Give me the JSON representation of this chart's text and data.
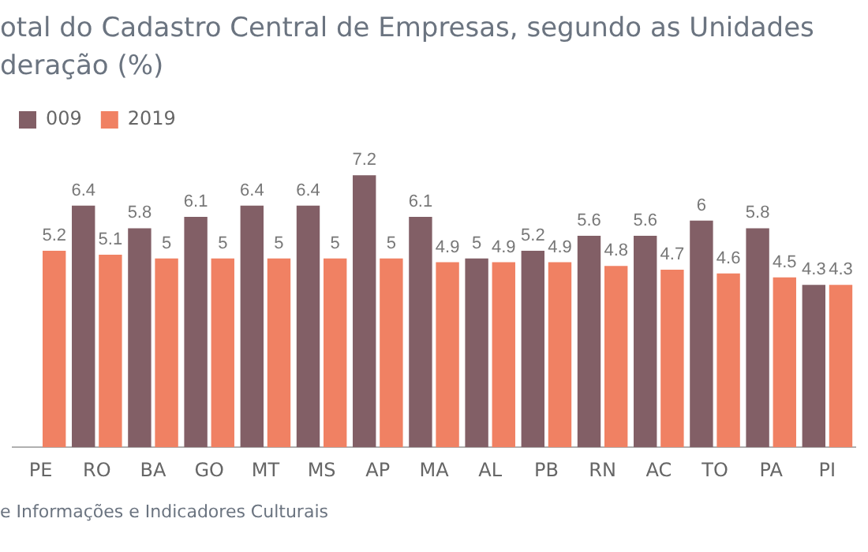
{
  "chart_data": {
    "type": "bar",
    "title": "otal do Cadastro Central de Empresas, segundo as Unidades\nderação (%)",
    "categories": [
      "PE",
      "RO",
      "BA",
      "GO",
      "MT",
      "MS",
      "AP",
      "MA",
      "AL",
      "PB",
      "RN",
      "AC",
      "TO",
      "PA",
      "PI"
    ],
    "series": [
      {
        "name": "009",
        "color": "#825f66",
        "values": [
          null,
          6.4,
          5.8,
          6.1,
          6.4,
          6.4,
          7.2,
          6.1,
          5,
          5.2,
          5.6,
          5.6,
          6,
          5.8,
          4.3
        ]
      },
      {
        "name": "2019",
        "color": "#f08163",
        "values": [
          5.2,
          5.1,
          5,
          5,
          5,
          5,
          5,
          4.9,
          4.9,
          4.9,
          4.8,
          4.7,
          4.6,
          4.5,
          4.3
        ]
      }
    ],
    "tick_labels": "x",
    "data_labels": true,
    "grid": false,
    "legend": "top left",
    "annotations": [
      "e Informações e Indicadores Culturais"
    ]
  }
}
